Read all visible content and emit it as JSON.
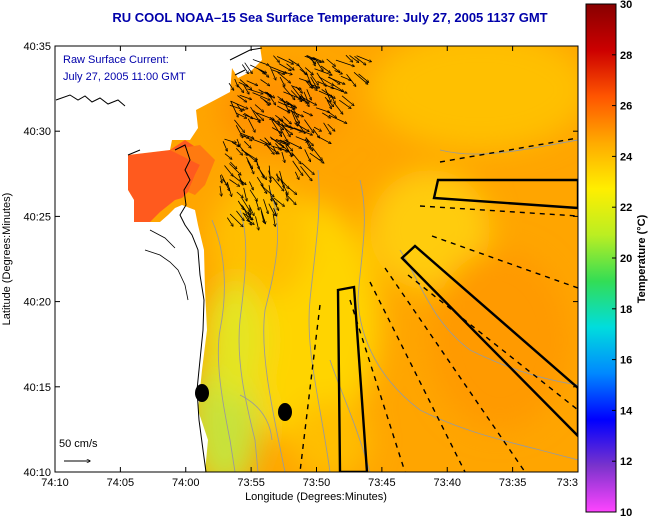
{
  "figure": {
    "title": "RU COOL  NOAA–15  Sea Surface Temperature:  July 27, 2005 1137 GMT",
    "current_label_line1": "Raw Surface Current:",
    "current_label_line2": "July 27, 2005 11:00 GMT",
    "scale_label": "50 cm/s",
    "xlabel": "Longitude (Degrees:Minutes)",
    "ylabel": "Latitude (Degrees:Minutes)",
    "colorbar_label": "Temperature (°C)"
  },
  "axes": {
    "x_ticks": [
      "74:10",
      "74:05",
      "74:00",
      "73:55",
      "73:50",
      "73:45",
      "73:40",
      "73:35",
      "73:3"
    ],
    "y_ticks": [
      "40:35",
      "40:30",
      "40:25",
      "40:20",
      "40:15",
      "40:10"
    ]
  },
  "colorbar": {
    "ticks": [
      "30",
      "28",
      "26",
      "24",
      "22",
      "20",
      "18",
      "16",
      "14",
      "12",
      "10"
    ],
    "min": 10,
    "max": 30,
    "colors": [
      "#ff44ff",
      "#7a33cc",
      "#0000ff",
      "#0088ff",
      "#00dddd",
      "#33dd55",
      "#bbee22",
      "#ffee00",
      "#ffaa00",
      "#ff5500",
      "#cc0000",
      "#880000"
    ]
  },
  "colors": {
    "land": "#ffffff",
    "sst_warm": "#ffa500",
    "sst_mid": "#ffc800",
    "sst_cool": "#bfe23a",
    "sst_hot": "#ff5a1e",
    "contour": "#9a9a9a",
    "vector": "#000000"
  }
}
